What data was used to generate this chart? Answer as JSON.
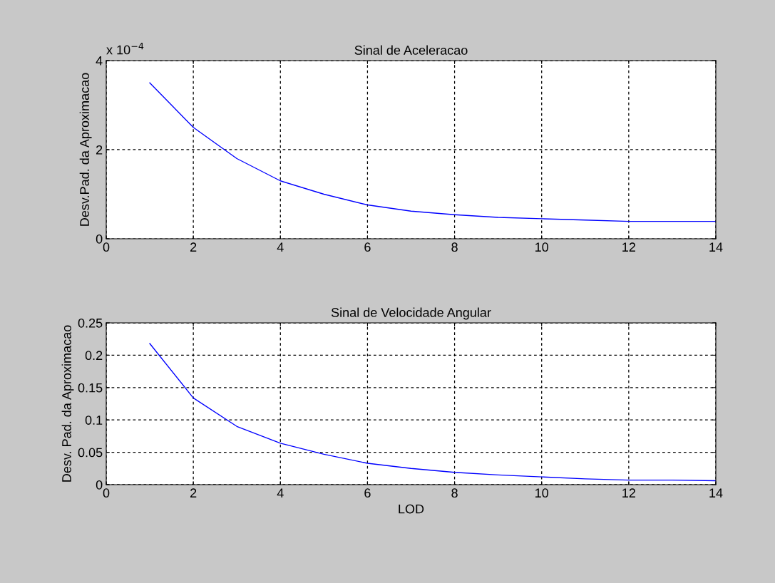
{
  "chart_data": [
    {
      "type": "line",
      "title": "Sinal de Aceleracao",
      "ylabel": "Desv.Pad. da Aproximacao",
      "annotations": [
        "x 10$^{−4}$"
      ],
      "x": [
        1,
        2,
        3,
        4,
        5,
        6,
        7,
        8,
        9,
        10,
        11,
        12,
        13,
        14
      ],
      "series": [
        {
          "color": "#0000ff",
          "values": [
            3.5,
            2.5,
            1.8,
            1.3,
            1.0,
            0.76,
            0.62,
            0.54,
            0.48,
            0.45,
            0.42,
            0.39,
            0.39,
            0.39
          ]
        }
      ],
      "xlim": [
        0,
        14
      ],
      "xticks": [
        0,
        2,
        4,
        6,
        8,
        10,
        12,
        14
      ],
      "ylim": [
        0,
        4
      ],
      "yticks": [
        0,
        2,
        4
      ],
      "grid": true,
      "legend": false
    },
    {
      "type": "line",
      "title": "Sinal de Velocidade Angular",
      "xlabel": "LOD",
      "ylabel": "Desv. Pad. da Aproximacao",
      "x": [
        1,
        2,
        3,
        4,
        5,
        6,
        7,
        8,
        9,
        10,
        11,
        12,
        13,
        14
      ],
      "series": [
        {
          "color": "#0000ff",
          "values": [
            0.218,
            0.134,
            0.09,
            0.064,
            0.047,
            0.033,
            0.025,
            0.019,
            0.015,
            0.012,
            0.009,
            0.007,
            0.007,
            0.006
          ]
        }
      ],
      "xlim": [
        0,
        14
      ],
      "xticks": [
        0,
        2,
        4,
        6,
        8,
        10,
        12,
        14
      ],
      "ylim": [
        0,
        0.25
      ],
      "yticks": [
        0,
        0.05,
        0.1,
        0.15,
        0.2,
        0.25
      ],
      "grid": true,
      "legend": false
    }
  ]
}
